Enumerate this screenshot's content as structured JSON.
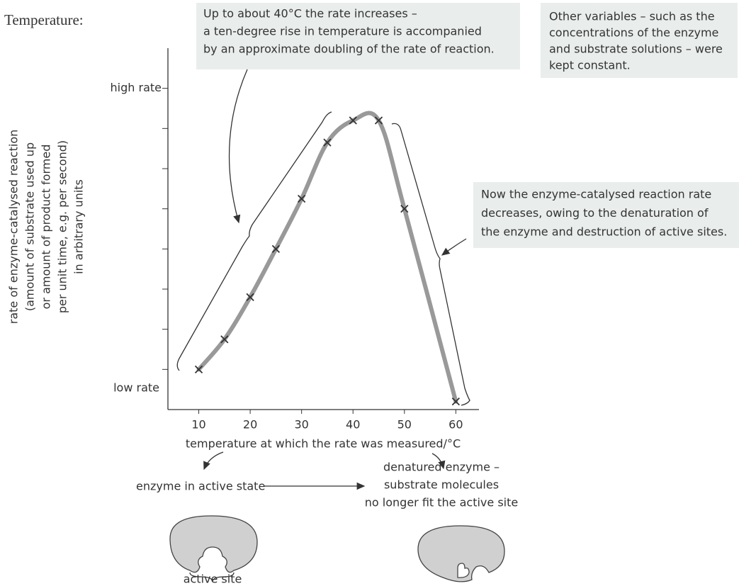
{
  "chart_data": {
    "type": "line",
    "title": "Temperature:",
    "x": [
      10,
      15,
      20,
      25,
      30,
      35,
      40,
      45,
      50,
      60
    ],
    "series": [
      {
        "color": "#999999",
        "marker_color": "#333333",
        "values": [
          1.0,
          1.75,
          2.8,
          4.0,
          5.25,
          6.65,
          7.2,
          7.2,
          5.0,
          0.2
        ]
      }
    ],
    "xlim": [
      4,
      64.5
    ],
    "xticks": [
      10,
      20,
      30,
      40,
      50,
      60
    ],
    "ylim": [
      0,
      9
    ],
    "yticks": [
      {
        "value": 8,
        "label": "high rate"
      }
    ],
    "yticks_unlabeled": [
      1,
      2,
      3,
      4,
      5,
      6,
      7
    ],
    "y_low_label": "low rate",
    "xlabel": "temperature at which the rate was measured/°C",
    "ylabel_lines": [
      "rate of enzyme-catalysed reaction",
      "(amount of substrate used up",
      "or amount of product formed",
      "per unit time, e.g. per second)",
      "in arbitrary units"
    ],
    "annotations": [
      {
        "lines": [
          "Up to about 40°C the rate increases –",
          "a ten-degree rise in temperature is accompanied",
          "by an approximate doubling of the rate of reaction."
        ]
      },
      {
        "lines": [
          "Other variables – such as the",
          "concentrations of the enzyme",
          "and substrate solutions – were",
          "kept constant."
        ]
      },
      {
        "lines": [
          "Now the enzyme-catalysed reaction rate",
          "decreases, owing to the denaturation of",
          "the enzyme and destruction of active sites."
        ]
      }
    ],
    "active_state_label": "enzyme in active state",
    "denatured_lines": [
      "denatured enzyme –",
      "substrate molecules",
      "no longer fit the active site"
    ],
    "active_site_label": "active site"
  }
}
